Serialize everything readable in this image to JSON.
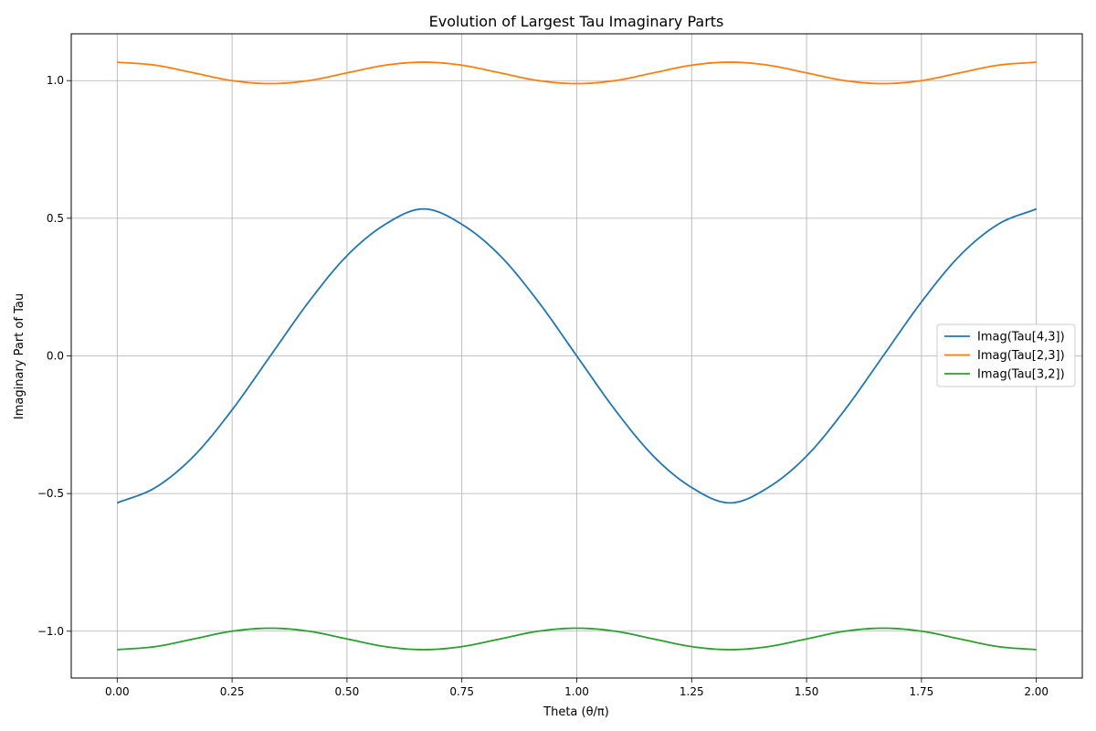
{
  "chart_data": {
    "type": "line",
    "title": "Evolution of Largest Tau Imaginary Parts",
    "xlabel": "Theta (θ/π)",
    "ylabel": "Imaginary Part of Tau",
    "xlim": [
      -0.1,
      2.1
    ],
    "ylim": [
      -1.17,
      1.17
    ],
    "xticks": [
      0.0,
      0.25,
      0.5,
      0.75,
      1.0,
      1.25,
      1.5,
      1.75,
      2.0
    ],
    "xtick_labels": [
      "0.00",
      "0.25",
      "0.50",
      "0.75",
      "1.00",
      "1.25",
      "1.50",
      "1.75",
      "2.00"
    ],
    "yticks": [
      -1.0,
      -0.5,
      0.0,
      0.5,
      1.0
    ],
    "ytick_labels": [
      "−1.0",
      "−0.5",
      "0.0",
      "0.5",
      "1.0"
    ],
    "grid": true,
    "legend_position": "center-right",
    "x": [
      0.0,
      0.0833,
      0.1667,
      0.25,
      0.3333,
      0.4167,
      0.5,
      0.5833,
      0.6667,
      0.75,
      0.8333,
      0.9167,
      1.0,
      1.0833,
      1.1667,
      1.25,
      1.3333,
      1.4167,
      1.5,
      1.5833,
      1.6667,
      1.75,
      1.8333,
      1.9167,
      2.0
    ],
    "series": [
      {
        "name": "Imag(Tau[4,3])",
        "color": "#1f77b4",
        "values": [
          -0.534,
          -0.478,
          -0.364,
          -0.196,
          0.0,
          0.196,
          0.364,
          0.478,
          0.534,
          0.478,
          0.364,
          0.196,
          0.0,
          -0.196,
          -0.364,
          -0.478,
          -0.534,
          -0.478,
          -0.364,
          -0.196,
          0.0,
          0.196,
          0.364,
          0.478,
          0.534
        ]
      },
      {
        "name": "Imag(Tau[2,3])",
        "color": "#ff7f0e",
        "values": [
          1.067,
          1.056,
          1.028,
          1.0,
          0.989,
          1.0,
          1.028,
          1.056,
          1.067,
          1.056,
          1.028,
          1.0,
          0.989,
          1.0,
          1.028,
          1.056,
          1.067,
          1.056,
          1.028,
          1.0,
          0.989,
          1.0,
          1.028,
          1.056,
          1.067
        ]
      },
      {
        "name": "Imag(Tau[3,2])",
        "color": "#2ca02c",
        "values": [
          -1.067,
          -1.056,
          -1.028,
          -1.0,
          -0.989,
          -1.0,
          -1.028,
          -1.056,
          -1.067,
          -1.056,
          -1.028,
          -1.0,
          -0.989,
          -1.0,
          -1.028,
          -1.056,
          -1.067,
          -1.056,
          -1.028,
          -1.0,
          -0.989,
          -1.0,
          -1.028,
          -1.056,
          -1.067
        ]
      }
    ]
  }
}
